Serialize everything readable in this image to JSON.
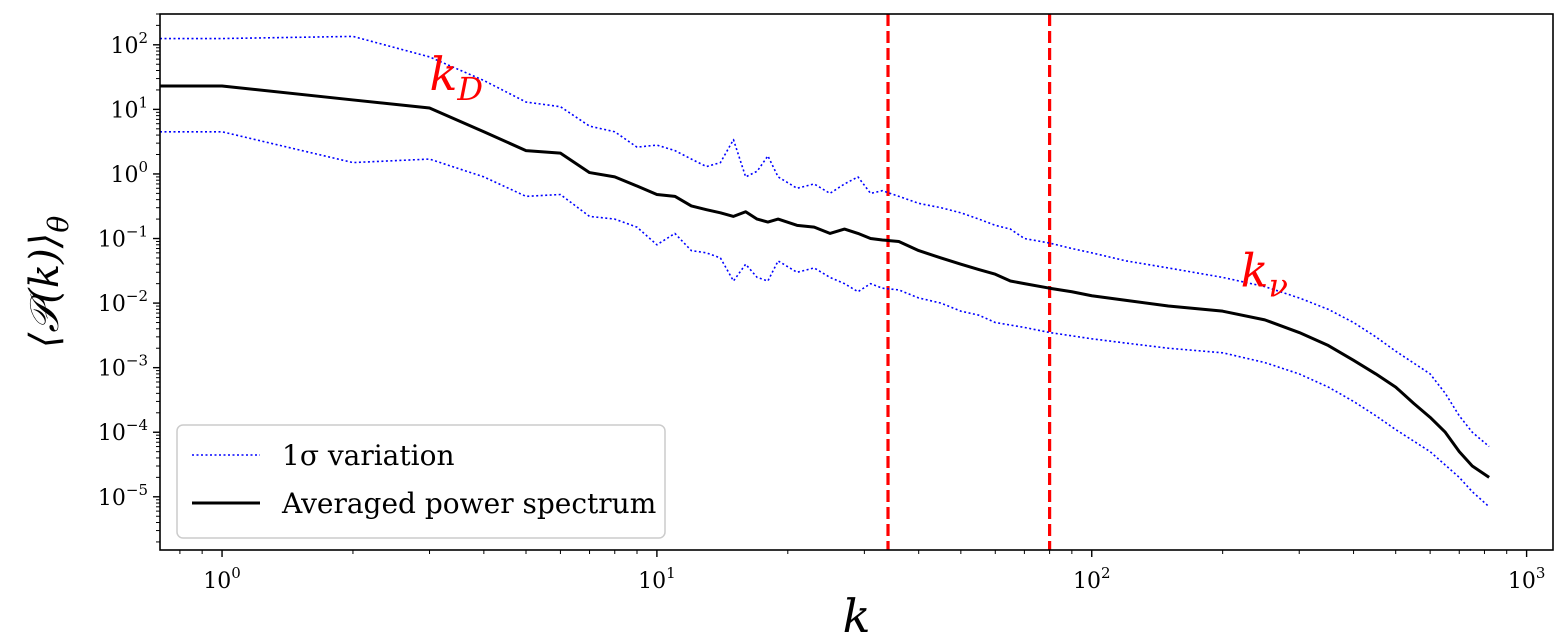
{
  "chart_data": {
    "type": "line",
    "title": "",
    "xlabel": "k",
    "ylabel": "⟨𝒫(k)⟩θ",
    "x_scale": "log",
    "y_scale": "log",
    "xlim": [
      0.72,
      1150
    ],
    "ylim": [
      1.5e-06,
      300
    ],
    "x_ticks": [
      {
        "value": 1,
        "mantissa": "10",
        "exp": "0"
      },
      {
        "value": 10,
        "mantissa": "10",
        "exp": "1"
      },
      {
        "value": 100,
        "mantissa": "10",
        "exp": "2"
      },
      {
        "value": 1000,
        "mantissa": "10",
        "exp": "3"
      }
    ],
    "y_ticks": [
      {
        "value": 100,
        "mantissa": "10",
        "exp": "2"
      },
      {
        "value": 10,
        "mantissa": "10",
        "exp": "1"
      },
      {
        "value": 1,
        "mantissa": "10",
        "exp": "0"
      },
      {
        "value": 0.1,
        "mantissa": "10",
        "exp": "−1"
      },
      {
        "value": 0.01,
        "mantissa": "10",
        "exp": "−2"
      },
      {
        "value": 0.001,
        "mantissa": "10",
        "exp": "−3"
      },
      {
        "value": 0.0001,
        "mantissa": "10",
        "exp": "−4"
      },
      {
        "value": 1e-05,
        "mantissa": "10",
        "exp": "−5"
      }
    ],
    "grid": false,
    "legend_position": "lower-left",
    "colors": {
      "mean": "#000000",
      "sigma": "#0000ff",
      "vline": "#ff0000"
    },
    "vlines": [
      34,
      80
    ],
    "annotations": [
      {
        "text": "k",
        "sub": "D",
        "x": 3.0,
        "y": 20
      },
      {
        "text": "k",
        "sub": "ν",
        "x": 220,
        "y": 0.018
      }
    ],
    "series": [
      {
        "name": "1σ variation",
        "role": "upper",
        "style": "dotted",
        "points": [
          [
            0.72,
            125
          ],
          [
            1,
            125
          ],
          [
            2,
            135
          ],
          [
            3,
            65
          ],
          [
            4,
            28
          ],
          [
            5,
            13
          ],
          [
            6,
            11
          ],
          [
            7,
            5.5
          ],
          [
            8,
            4.5
          ],
          [
            9,
            2.6
          ],
          [
            10,
            2.8
          ],
          [
            11,
            2.3
          ],
          [
            12,
            1.7
          ],
          [
            13,
            1.3
          ],
          [
            14,
            1.5
          ],
          [
            15,
            3.4
          ],
          [
            16,
            0.9
          ],
          [
            17,
            1.1
          ],
          [
            18,
            1.9
          ],
          [
            19,
            0.9
          ],
          [
            21,
            0.6
          ],
          [
            23,
            0.7
          ],
          [
            25,
            0.5
          ],
          [
            27,
            0.7
          ],
          [
            29,
            0.9
          ],
          [
            31,
            0.5
          ],
          [
            33,
            0.55
          ],
          [
            36,
            0.45
          ],
          [
            40,
            0.35
          ],
          [
            45,
            0.3
          ],
          [
            50,
            0.25
          ],
          [
            55,
            0.2
          ],
          [
            60,
            0.16
          ],
          [
            65,
            0.14
          ],
          [
            70,
            0.1
          ],
          [
            80,
            0.085
          ],
          [
            90,
            0.07
          ],
          [
            100,
            0.06
          ],
          [
            120,
            0.045
          ],
          [
            150,
            0.035
          ],
          [
            200,
            0.025
          ],
          [
            250,
            0.018
          ],
          [
            300,
            0.012
          ],
          [
            350,
            0.008
          ],
          [
            400,
            0.005
          ],
          [
            450,
            0.003
          ],
          [
            500,
            0.0018
          ],
          [
            600,
            0.0008
          ],
          [
            650,
            0.0004
          ],
          [
            700,
            0.00018
          ],
          [
            750,
            0.0001
          ],
          [
            820,
            6e-05
          ]
        ]
      },
      {
        "name": "1σ variation",
        "role": "lower",
        "style": "dotted",
        "points": [
          [
            0.72,
            4.5
          ],
          [
            1,
            4.5
          ],
          [
            2,
            1.5
          ],
          [
            3,
            1.7
          ],
          [
            4,
            0.9
          ],
          [
            5,
            0.45
          ],
          [
            6,
            0.48
          ],
          [
            7,
            0.22
          ],
          [
            8,
            0.2
          ],
          [
            9,
            0.15
          ],
          [
            10,
            0.08
          ],
          [
            11,
            0.12
          ],
          [
            12,
            0.065
          ],
          [
            13,
            0.06
          ],
          [
            14,
            0.05
          ],
          [
            15,
            0.022
          ],
          [
            16,
            0.04
          ],
          [
            17,
            0.025
          ],
          [
            18,
            0.022
          ],
          [
            19,
            0.045
          ],
          [
            21,
            0.03
          ],
          [
            23,
            0.035
          ],
          [
            25,
            0.025
          ],
          [
            27,
            0.02
          ],
          [
            29,
            0.015
          ],
          [
            31,
            0.02
          ],
          [
            33,
            0.017
          ],
          [
            36,
            0.016
          ],
          [
            40,
            0.012
          ],
          [
            45,
            0.01
          ],
          [
            50,
            0.0075
          ],
          [
            55,
            0.0065
          ],
          [
            60,
            0.005
          ],
          [
            70,
            0.0042
          ],
          [
            80,
            0.0035
          ],
          [
            100,
            0.0028
          ],
          [
            120,
            0.0024
          ],
          [
            150,
            0.002
          ],
          [
            200,
            0.0017
          ],
          [
            250,
            0.0012
          ],
          [
            300,
            0.0008
          ],
          [
            350,
            0.0005
          ],
          [
            400,
            0.0003
          ],
          [
            450,
            0.00018
          ],
          [
            500,
            0.00011
          ],
          [
            600,
            5e-05
          ],
          [
            700,
            2e-05
          ],
          [
            750,
            1.2e-05
          ],
          [
            820,
            7e-06
          ]
        ]
      },
      {
        "name": "Averaged power spectrum",
        "role": "mean",
        "style": "solid",
        "points": [
          [
            0.72,
            23
          ],
          [
            1,
            23
          ],
          [
            2,
            14
          ],
          [
            3,
            10.5
          ],
          [
            4,
            4.5
          ],
          [
            5,
            2.3
          ],
          [
            6,
            2.1
          ],
          [
            7,
            1.05
          ],
          [
            8,
            0.9
          ],
          [
            9,
            0.65
          ],
          [
            10,
            0.48
          ],
          [
            11,
            0.45
          ],
          [
            12,
            0.32
          ],
          [
            13,
            0.28
          ],
          [
            14,
            0.25
          ],
          [
            15,
            0.22
          ],
          [
            16,
            0.26
          ],
          [
            17,
            0.2
          ],
          [
            18,
            0.18
          ],
          [
            19,
            0.2
          ],
          [
            21,
            0.16
          ],
          [
            23,
            0.15
          ],
          [
            25,
            0.12
          ],
          [
            27,
            0.14
          ],
          [
            29,
            0.12
          ],
          [
            31,
            0.1
          ],
          [
            33,
            0.095
          ],
          [
            36,
            0.09
          ],
          [
            40,
            0.065
          ],
          [
            45,
            0.05
          ],
          [
            50,
            0.04
          ],
          [
            55,
            0.033
          ],
          [
            60,
            0.028
          ],
          [
            65,
            0.022
          ],
          [
            70,
            0.02
          ],
          [
            80,
            0.017
          ],
          [
            90,
            0.015
          ],
          [
            100,
            0.013
          ],
          [
            120,
            0.011
          ],
          [
            150,
            0.009
          ],
          [
            200,
            0.0075
          ],
          [
            250,
            0.0055
          ],
          [
            300,
            0.0035
          ],
          [
            350,
            0.0022
          ],
          [
            400,
            0.0013
          ],
          [
            450,
            0.0008
          ],
          [
            500,
            0.0005
          ],
          [
            550,
            0.00028
          ],
          [
            600,
            0.00017
          ],
          [
            650,
            0.0001
          ],
          [
            700,
            5e-05
          ],
          [
            750,
            3e-05
          ],
          [
            820,
            2e-05
          ]
        ]
      }
    ]
  }
}
